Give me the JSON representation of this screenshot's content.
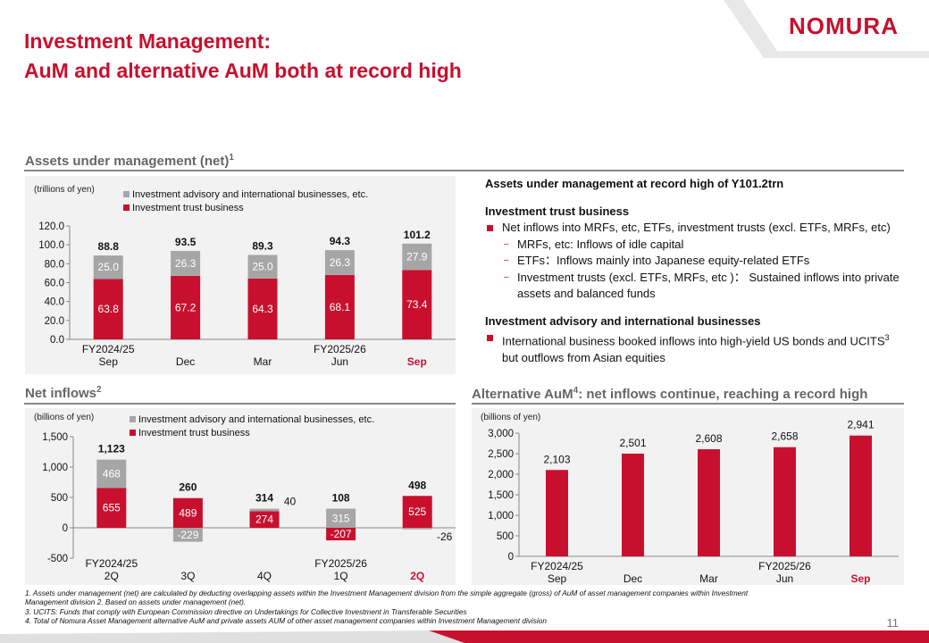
{
  "header": {
    "logo": "NOMURA",
    "title_line1": "Investment Management:",
    "title_line2": "AuM and alternative AuM both at record high",
    "page_number": "11"
  },
  "colors": {
    "red": "#c8102e",
    "gray": "#a6a6a6",
    "panel": "#f2f2f2"
  },
  "aum_section": {
    "title": "Assets under management (net)",
    "title_sup": "1"
  },
  "net_section": {
    "title": "Net inflows",
    "title_sup": "2"
  },
  "alt_section": {
    "title_pre": "Alternative AuM",
    "title_sup": "4",
    "title_post": ": net inflows continue, reaching a record high"
  },
  "text_panel": {
    "headline": "Assets under management at record high of Y101.2trn",
    "h1": "Investment trust business",
    "b1": "Net inflows into MRFs, etc, ETFs, investment trusts (excl. ETFs, MRFs, etc)",
    "s1": "MRFs, etc: Inflows of idle capital",
    "s2": "ETFs：Inflows mainly into Japanese equity-related ETFs",
    "s3": "Investment trusts (excl. ETFs, MRFs, etc )： Sustained inflows into private assets and balanced funds",
    "h2": "Investment advisory and international businesses",
    "b2_pre": "International business booked inflows into high-yield US bonds and UCITS",
    "b2_sup": "3",
    "b2_post": " but outflows from Asian equities"
  },
  "footnotes": {
    "f1a": "1.      Assets under management (net) are calculated by deducting overlapping assets within the Investment Management division from the simple aggregate (gross) of AuM of asset management companies within Investment",
    "f1b": "Management division      2.      Based on assets under management (net).",
    "f3": "3.      UCITS: Funds that comply with European Commission directive on Undertakings for Collective Investment in Transferable Securities",
    "f4": "4.      Total of Nomura Asset Management alternative AuM and private assets AUM of other asset management companies within Investment Management division"
  },
  "chart_data": [
    {
      "type": "bar",
      "stacked": true,
      "unit_label": "(trillions of yen)",
      "categories": [
        "Sep",
        "Dec",
        "Mar",
        "Jun",
        "Sep"
      ],
      "period_labels": [
        "FY2024/25",
        "",
        "",
        "FY2025/26",
        ""
      ],
      "highlight_last": true,
      "series": [
        {
          "name": "Investment trust business",
          "values": [
            63.8,
            67.2,
            64.3,
            68.1,
            73.4
          ],
          "color": "#c8102e"
        },
        {
          "name": "Investment advisory and international businesses, etc.",
          "values": [
            25.0,
            26.3,
            25.0,
            26.3,
            27.9
          ],
          "color": "#a6a6a6"
        }
      ],
      "totals": [
        88.8,
        93.5,
        89.3,
        94.3,
        101.2
      ],
      "ylim": [
        0,
        120
      ],
      "yticks": [
        "0.0",
        "20.0",
        "40.0",
        "60.0",
        "80.0",
        "100.0",
        "120.0"
      ],
      "legend": "top"
    },
    {
      "type": "bar",
      "stacked": true,
      "unit_label": "(billions of yen)",
      "categories": [
        "2Q",
        "3Q",
        "4Q",
        "1Q",
        "2Q"
      ],
      "period_labels": [
        "FY2024/25",
        "",
        "",
        "FY2025/26",
        ""
      ],
      "highlight_last": true,
      "series": [
        {
          "name": "Investment trust business",
          "values": [
            655,
            489,
            274,
            -207,
            525
          ],
          "color": "#c8102e"
        },
        {
          "name": "Investment advisory and international businesses, etc.",
          "values": [
            468,
            -229,
            40,
            315,
            -26
          ],
          "color": "#a6a6a6"
        }
      ],
      "totals": [
        1123,
        260,
        314,
        108,
        498
      ],
      "ylim": [
        -500,
        1500
      ],
      "yticks": [
        "-500",
        "0",
        "500",
        "1,000",
        "1,500"
      ],
      "legend": "top"
    },
    {
      "type": "bar",
      "unit_label": "(billions of yen)",
      "categories": [
        "Sep",
        "Dec",
        "Mar",
        "Jun",
        "Sep"
      ],
      "period_labels": [
        "FY2024/25",
        "",
        "",
        "FY2025/26",
        ""
      ],
      "highlight_last": true,
      "values": [
        2103,
        2501,
        2608,
        2658,
        2941
      ],
      "value_labels": [
        "2,103",
        "2,501",
        "2,608",
        "2,658",
        "2,941"
      ],
      "ylim": [
        0,
        3000
      ],
      "yticks": [
        "0",
        "500",
        "1,000",
        "1,500",
        "2,000",
        "2,500",
        "3,000"
      ]
    }
  ]
}
